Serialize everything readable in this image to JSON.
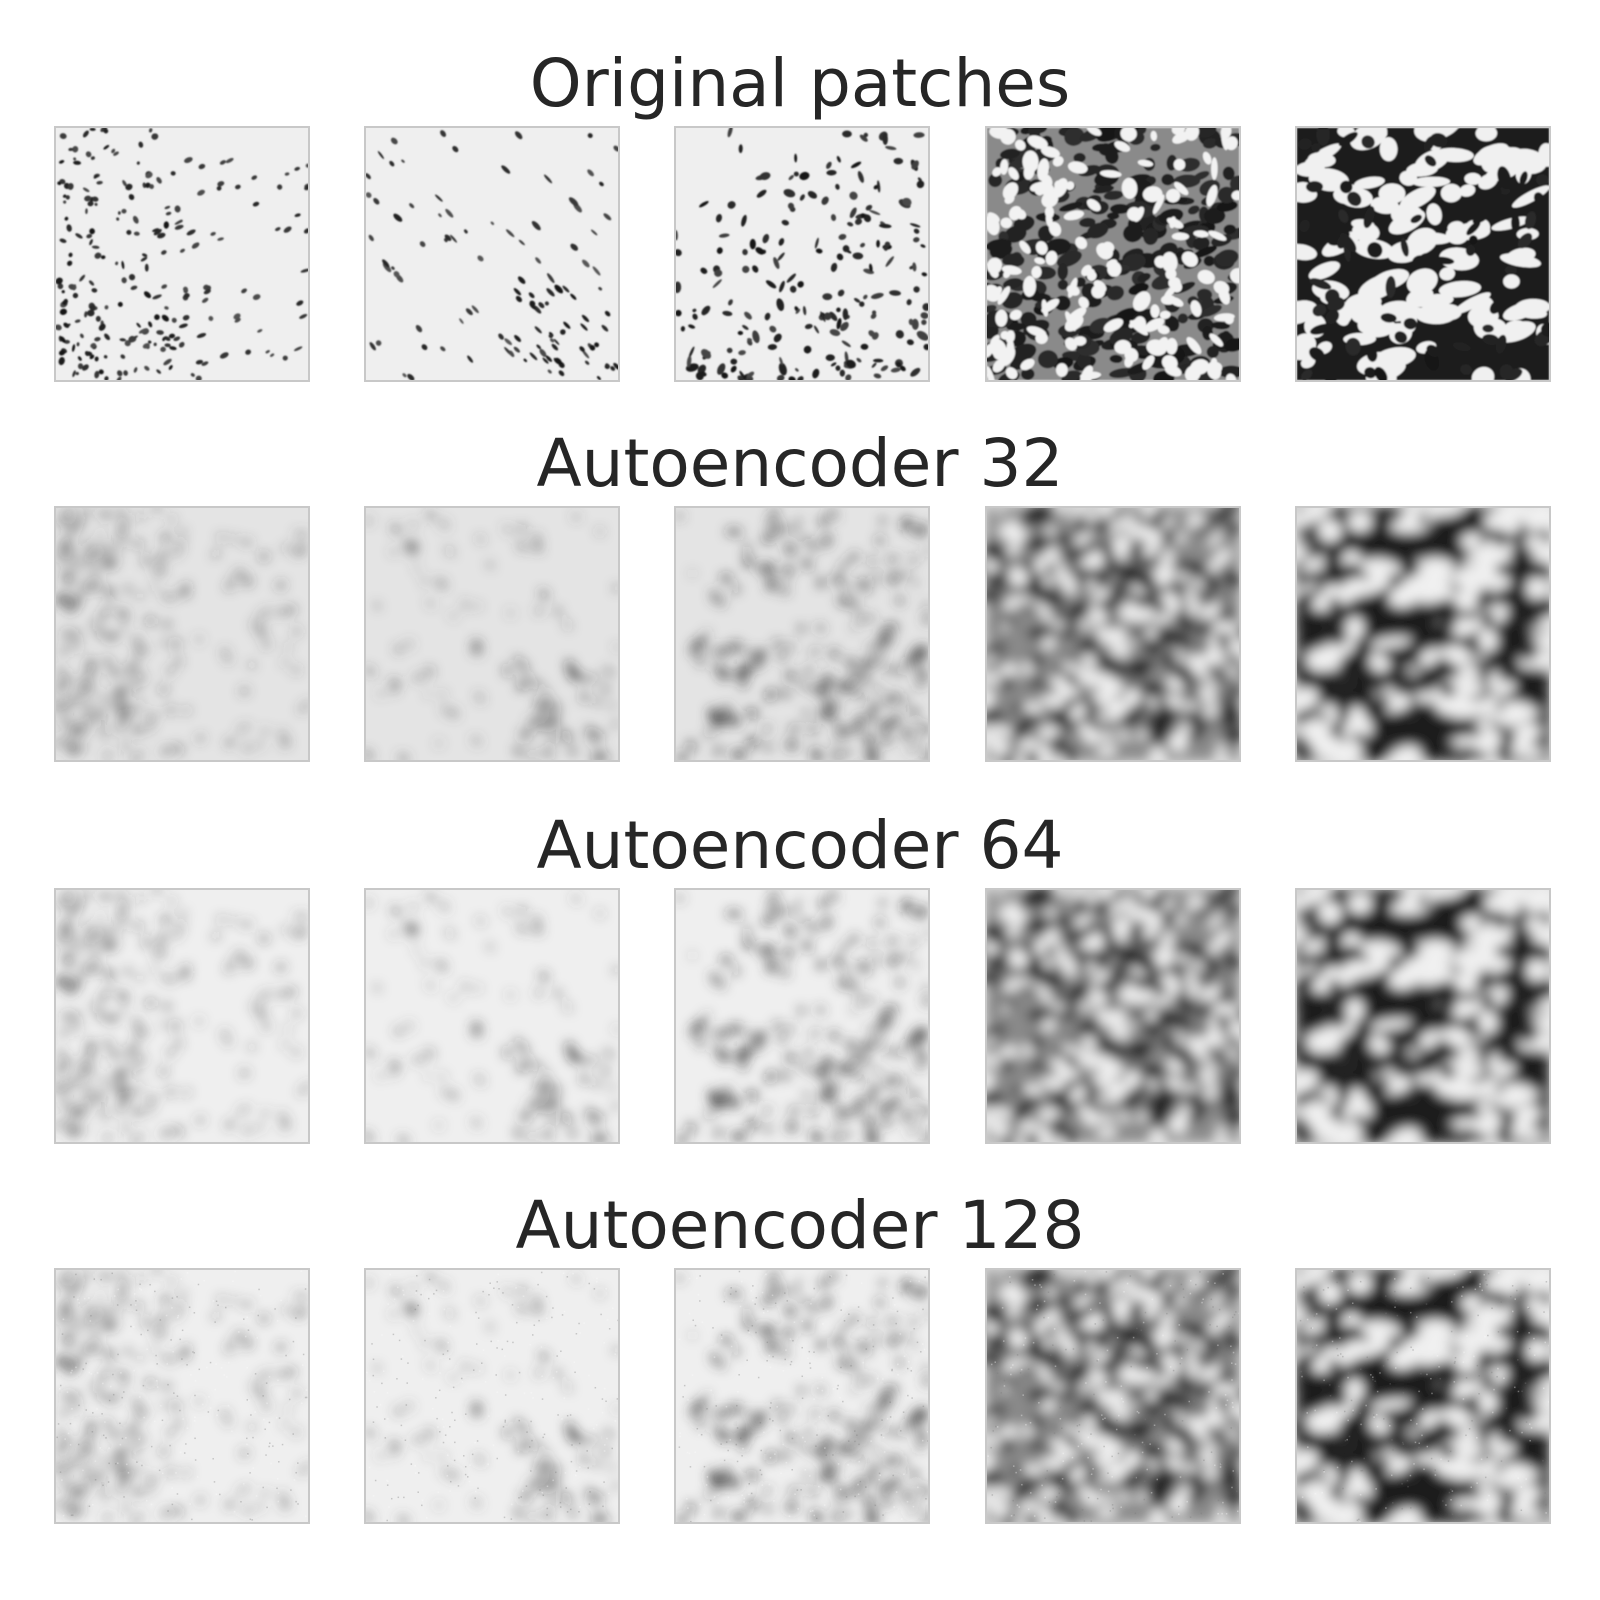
{
  "rows": [
    {
      "title": "Original patches",
      "style": "sharp",
      "patches": [
        {
          "texture": "dense-fine-cells-left",
          "tone": "light"
        },
        {
          "texture": "sparse-diagonal-streaks",
          "tone": "light"
        },
        {
          "texture": "cellular-bottom-right",
          "tone": "light"
        },
        {
          "texture": "dense-cellular-clouds",
          "tone": "dark"
        },
        {
          "texture": "large-cloud-clumps",
          "tone": "dark"
        }
      ]
    },
    {
      "title": "Autoencoder 32",
      "style": "blurry",
      "patches": [
        {
          "texture": "dense-fine-cells-left",
          "tone": "light"
        },
        {
          "texture": "sparse-diagonal-streaks",
          "tone": "light"
        },
        {
          "texture": "cellular-bottom-right",
          "tone": "light"
        },
        {
          "texture": "dense-cellular-clouds",
          "tone": "dark"
        },
        {
          "texture": "large-cloud-clumps",
          "tone": "dark"
        }
      ]
    },
    {
      "title": "Autoencoder 64",
      "style": "medium",
      "patches": [
        {
          "texture": "dense-fine-cells-left",
          "tone": "light"
        },
        {
          "texture": "sparse-diagonal-streaks",
          "tone": "light"
        },
        {
          "texture": "cellular-bottom-right",
          "tone": "light"
        },
        {
          "texture": "dense-cellular-clouds",
          "tone": "dark"
        },
        {
          "texture": "large-cloud-clumps",
          "tone": "dark"
        }
      ]
    },
    {
      "title": "Autoencoder 128",
      "style": "sharp-grainy",
      "patches": [
        {
          "texture": "dense-fine-cells-left",
          "tone": "light"
        },
        {
          "texture": "sparse-diagonal-streaks",
          "tone": "light"
        },
        {
          "texture": "cellular-bottom-right",
          "tone": "light"
        },
        {
          "texture": "dense-cellular-clouds",
          "tone": "dark"
        },
        {
          "texture": "large-cloud-clumps",
          "tone": "dark"
        }
      ]
    }
  ],
  "colors": {
    "text": "#262626",
    "frame": "#c8c8c8",
    "background": "#ffffff"
  }
}
